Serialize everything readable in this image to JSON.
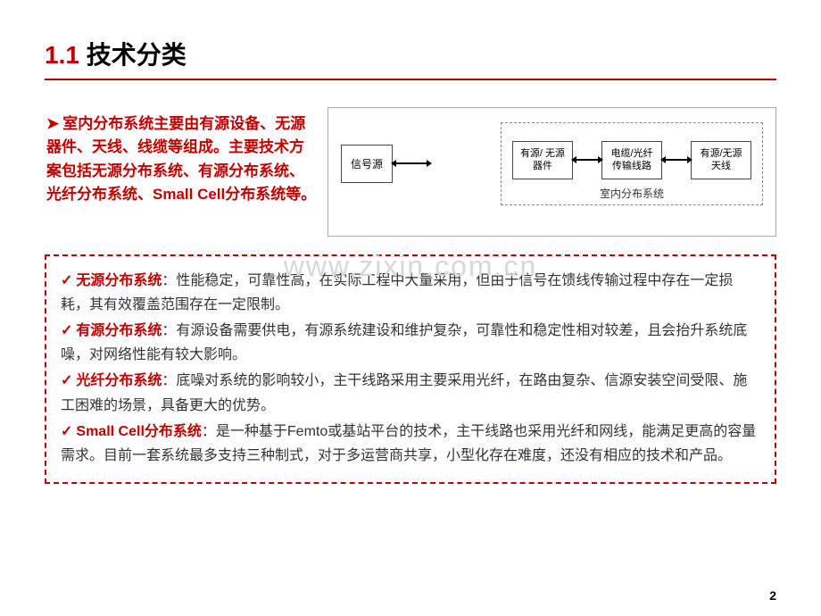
{
  "title": {
    "num": "1.1",
    "text": "技术分类"
  },
  "intro": {
    "bullet": "➤",
    "text": "室内分布系统主要由有源设备、无源器件、天线、线缆等组成。主要技术方案包括无源分布系统、有源分布系统、光纤分布系统、Small Cell分布系统等。"
  },
  "diagram": {
    "outer_block": "信号源",
    "inner_label": "室内分布系统",
    "blocks": [
      {
        "line1": "有源/ 无源",
        "line2": "器件"
      },
      {
        "line1": "电缆/光纤",
        "line2": "传输线路"
      },
      {
        "line1": "有源/无源",
        "line2": "天线"
      }
    ]
  },
  "watermark": "www.zixin.com.cn",
  "list": [
    {
      "title": "无源分布系统",
      "desc": "：性能稳定，可靠性高，在实际工程中大量采用，但由于信号在馈线传输过程中存在一定损耗，其有效覆盖范围存在一定限制。"
    },
    {
      "title": "有源分布系统",
      "desc": "：有源设备需要供电，有源系统建设和维护复杂，可靠性和稳定性相对较差，且会抬升系统底噪，对网络性能有较大影响。"
    },
    {
      "title": "光纤分布系统",
      "desc": "：底噪对系统的影响较小，主干线路采用主要采用光纤，在路由复杂、信源安装空间受限、施工困难的场景，具备更大的优势。"
    },
    {
      "title": "Small Cell分布系统",
      "desc": "：是一种基于Femto或基站平台的技术，主干线路也采用光纤和网线，能满足更高的容量需求。目前一套系统最多支持三种制式，对于多运营商共享，小型化存在难度，还没有相应的技术和产品。"
    }
  ],
  "pagenum": "2",
  "colors": {
    "accent": "#c00000"
  }
}
